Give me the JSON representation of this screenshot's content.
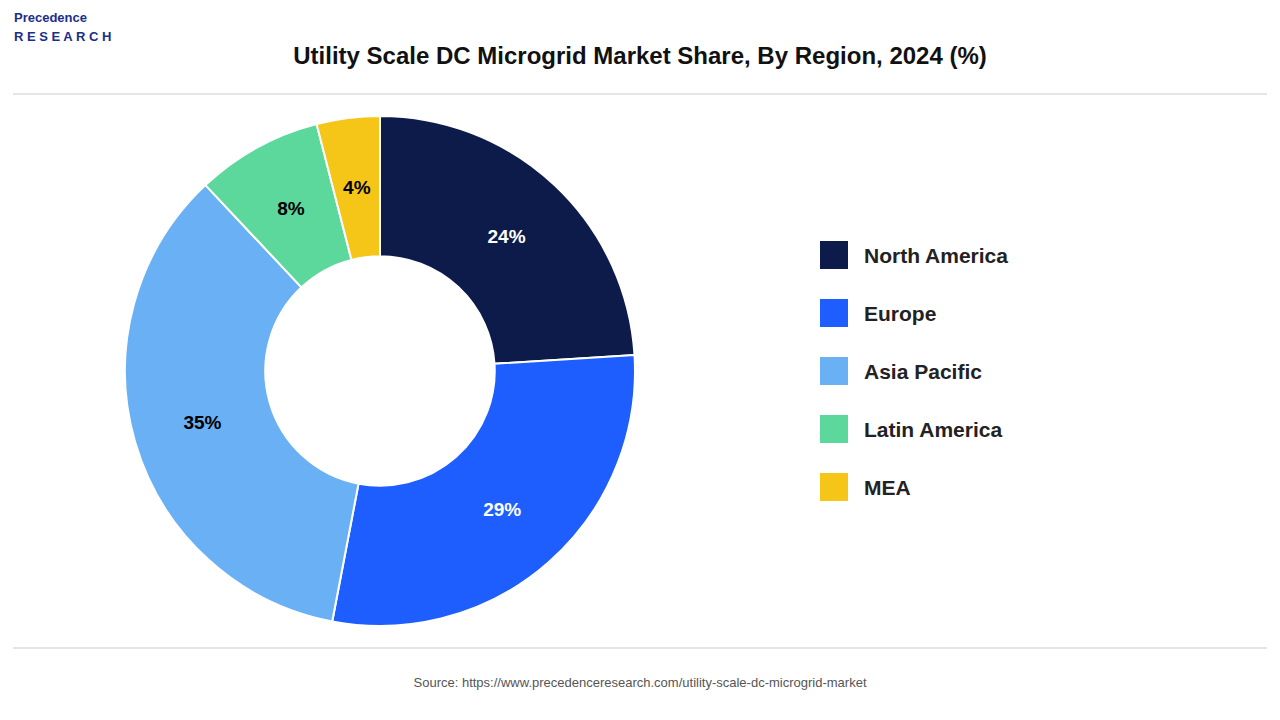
{
  "chart_data": {
    "type": "donut",
    "title": "Utility Scale DC Microgrid Market Share, By Region, 2024 (%)",
    "categories": [
      "North America",
      "Europe",
      "Asia Pacific",
      "Latin America",
      "MEA"
    ],
    "values": [
      24,
      29,
      35,
      8,
      4
    ],
    "value_labels": [
      "24%",
      "29%",
      "35%",
      "8%",
      "4%"
    ],
    "colors": [
      "#0d1b4b",
      "#1e5eff",
      "#6ab0f5",
      "#5dd89c",
      "#f5c518"
    ],
    "data_labels": true,
    "legend": "right",
    "annotations": [
      "Source: https://www.precedenceresearch.com/utility-scale-dc-microgrid-market",
      "Precedence\nR E S E A R C H"
    ]
  }
}
